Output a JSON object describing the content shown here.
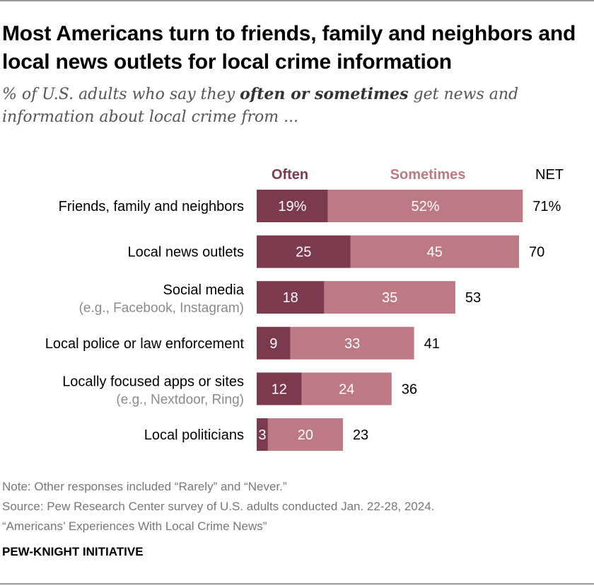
{
  "title": "Most Americans turn to friends, family and neighbors and local news outlets for local crime information",
  "subtitle": {
    "pre": "% of U.S. adults who say they ",
    "emph": "often or sometimes",
    "post": " get news and information about local crime from ..."
  },
  "colors": {
    "often": "#7b3a4e",
    "sometimes": "#bd7a85",
    "often_label": "#7b3a4e",
    "sometimes_label": "#bd7a85"
  },
  "chart_data": {
    "type": "bar",
    "orientation": "horizontal",
    "stacked": true,
    "series_headers": [
      "Often",
      "Sometimes"
    ],
    "net_header": "NET",
    "categories": [
      [
        "Friends, family and neighbors"
      ],
      [
        "Local news outlets"
      ],
      [
        "Social media",
        "(e.g., Facebook, Instagram)"
      ],
      [
        "Local police or law enforcement"
      ],
      [
        "Locally focused apps or sites",
        "(e.g., Nextdoor, Ring)"
      ],
      [
        "Local politicians"
      ]
    ],
    "series": [
      {
        "name": "Often",
        "values": [
          19,
          25,
          18,
          9,
          12,
          3
        ]
      },
      {
        "name": "Sometimes",
        "values": [
          52,
          45,
          35,
          33,
          24,
          20
        ]
      }
    ],
    "value_labels": {
      "Often": [
        "19%",
        "25",
        "18",
        "9",
        "12",
        "3"
      ],
      "Sometimes": [
        "52%",
        "45",
        "35",
        "33",
        "24",
        "20"
      ]
    },
    "net": [
      71,
      70,
      53,
      41,
      36,
      23
    ],
    "net_labels": [
      "71%",
      "70",
      "53",
      "41",
      "36",
      "23"
    ]
  },
  "footer": {
    "note": "Note: Other responses included “Rarely” and “Never.”",
    "source": "Source: Pew Research Center survey of U.S. adults conducted Jan. 22-28, 2024.",
    "report": "“Americans’ Experiences With Local Crime News”",
    "brand": "PEW-KNIGHT INITIATIVE"
  }
}
